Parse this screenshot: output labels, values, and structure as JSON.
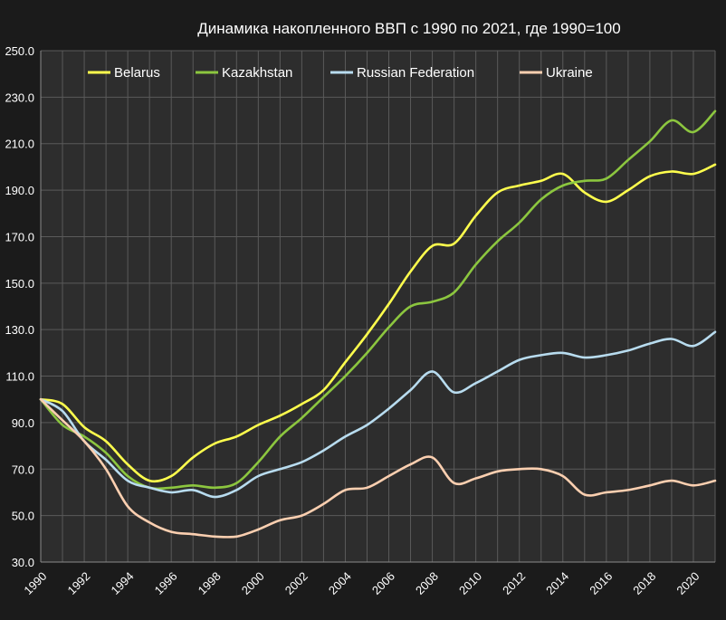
{
  "chart_data": {
    "type": "line",
    "title": "Динамика накопленного ВВП с 1990 по 2021, где 1990=100",
    "xlabel": "",
    "ylabel": "",
    "x": [
      1990,
      1991,
      1992,
      1993,
      1994,
      1995,
      1996,
      1997,
      1998,
      1999,
      2000,
      2001,
      2002,
      2003,
      2004,
      2005,
      2006,
      2007,
      2008,
      2009,
      2010,
      2011,
      2012,
      2013,
      2014,
      2015,
      2016,
      2017,
      2018,
      2019,
      2020,
      2021
    ],
    "x_tick_labels": [
      "1990",
      "1992",
      "1994",
      "1996",
      "1998",
      "2000",
      "2002",
      "2004",
      "2006",
      "2008",
      "2010",
      "2012",
      "2014",
      "2016",
      "2018",
      "2020"
    ],
    "xlim": [
      1990,
      2021
    ],
    "ylim": [
      30,
      250
    ],
    "y_ticks": [
      30,
      50,
      70,
      90,
      110,
      130,
      150,
      170,
      190,
      210,
      230,
      250
    ],
    "y_tick_labels": [
      "30.0",
      "50.0",
      "70.0",
      "90.0",
      "110.0",
      "130.0",
      "150.0",
      "170.0",
      "190.0",
      "210.0",
      "230.0",
      "250.0"
    ],
    "grid": true,
    "legend_position": "top",
    "series": [
      {
        "name": "Belarus",
        "color": "#ffff4d",
        "values": [
          100,
          98,
          88,
          82,
          72,
          65,
          67,
          75,
          81,
          84,
          89,
          93,
          98,
          104,
          116,
          128,
          141,
          155,
          166,
          167,
          179,
          189,
          192,
          194,
          197,
          189,
          185,
          190,
          196,
          198,
          197,
          201
        ]
      },
      {
        "name": "Kazakhstan",
        "color": "#8cc63f",
        "values": [
          100,
          89,
          84,
          77,
          67,
          62,
          62,
          63,
          62,
          64,
          73,
          84,
          92,
          101,
          110,
          120,
          131,
          140,
          142,
          146,
          158,
          168,
          176,
          186,
          192,
          194,
          195,
          203,
          211,
          220,
          215,
          224
        ]
      },
      {
        "name": "Russian Federation",
        "color": "#b8dcef",
        "values": [
          100,
          95,
          82,
          74,
          65,
          62,
          60,
          61,
          58,
          61,
          67,
          70,
          73,
          78,
          84,
          89,
          96,
          104,
          112,
          103,
          107,
          112,
          117,
          119,
          120,
          118,
          119,
          121,
          124,
          126,
          123,
          129
        ]
      },
      {
        "name": "Ukraine",
        "color": "#fbcfb0",
        "values": [
          100,
          91,
          82,
          70,
          54,
          47,
          43,
          42,
          41,
          41,
          44,
          48,
          50,
          55,
          61,
          62,
          67,
          72,
          75,
          64,
          66,
          69,
          70,
          70,
          67,
          59,
          60,
          61,
          63,
          65,
          63,
          65
        ]
      }
    ]
  }
}
